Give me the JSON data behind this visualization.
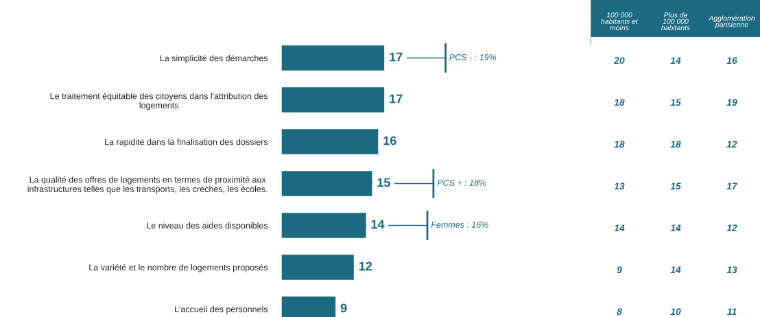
{
  "chart_data": [
    {
      "type": "bar",
      "orientation": "horizontal",
      "categories": [
        "La simplicité des démarches",
        "Le traitement équitable des citoyens dans l'attribution des\nlogements",
        "La rapidité dans la finalisation des dossiers",
        "La qualité des offres de logements en termes de proximité aux\ninfrastructures telles que les transports, les crèches, les écoles.",
        "Le niveau des aides disponibles",
        "La variété et le nombre de logements proposés",
        "L'accueil des personnels"
      ],
      "values": [
        17,
        17,
        16,
        15,
        14,
        12,
        9
      ],
      "color": "#1b6a82",
      "tick_labels": "y",
      "data_labels": true,
      "grid": false,
      "legend": false,
      "annotations": [
        {
          "text": "PCS - : 19%",
          "x": 17,
          "y": "La simplicité des démarches"
        },
        {
          "text": "PCS + : 18%",
          "x": 15,
          "y": "La qualité des offres de logements en termes de proximité aux\ninfrastructures telles que les transports, les crèches, les écoles."
        },
        {
          "text": "Femmes : 16%",
          "x": 14,
          "y": "Le niveau des aides disponibles"
        }
      ]
    },
    {
      "type": "heatmap",
      "categories": [
        "100 000\nhabitants et\nmoins",
        "Plus de\n100 000\nhabitants",
        "Agglomération\nparisienne"
      ],
      "y_categories": [
        null,
        null,
        null,
        null,
        null,
        null,
        null
      ],
      "cells": [
        [
          20,
          14,
          16
        ],
        [
          18,
          15,
          19
        ],
        [
          18,
          18,
          12
        ],
        [
          13,
          15,
          17
        ],
        [
          14,
          14,
          12
        ],
        [
          9,
          14,
          13
        ],
        [
          8,
          10,
          11
        ]
      ],
      "color": "#1b6a82",
      "data_labels": true,
      "tick_labels": "x"
    }
  ]
}
